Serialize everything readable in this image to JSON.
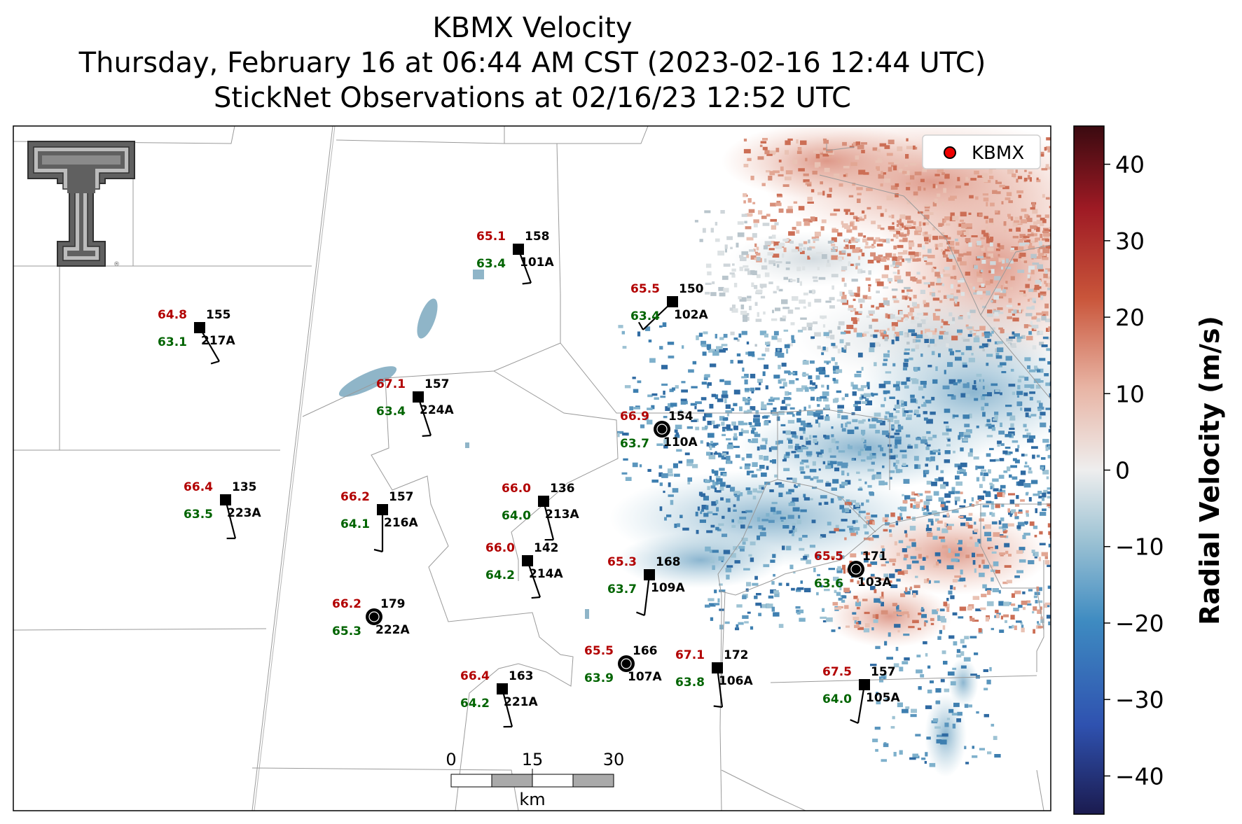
{
  "title": {
    "line1": "KBMX Velocity",
    "line2": "Thursday, February 16 at 06:44 AM CST (2023-02-16 12:44 UTC)",
    "line3": "StickNet Observations at 02/16/23 12:52 UTC"
  },
  "legend": {
    "label": "KBMX",
    "marker_color": "#ee0000"
  },
  "colorbar": {
    "label": "Radial Velocity (m/s)",
    "range": [
      -45,
      45
    ],
    "ticks": [
      "40",
      "30",
      "20",
      "10",
      "0",
      "−10",
      "−20",
      "−30",
      "−40"
    ],
    "colors": [
      "#1b1b4f",
      "#2f52b0",
      "#3e8bc1",
      "#9ec3d4",
      "#eeeeee",
      "#e8b4a4",
      "#c9553a",
      "#9e1a24",
      "#3a0a10"
    ]
  },
  "scale_bar": {
    "labels": [
      "0",
      "15",
      "30"
    ],
    "unit": "km"
  },
  "logo": {
    "name": "texas-tech-double-t-logo",
    "color": "#606060"
  },
  "stations": [
    {
      "id": "101A",
      "temp": "65.1",
      "dew": "63.4",
      "pressure": "158",
      "marker": "square"
    },
    {
      "id": "102A",
      "temp": "65.5",
      "dew": "63.4",
      "pressure": "150",
      "marker": "square"
    },
    {
      "id": "217A",
      "temp": "64.8",
      "dew": "63.1",
      "pressure": "155",
      "marker": "square"
    },
    {
      "id": "224A",
      "temp": "67.1",
      "dew": "63.4",
      "pressure": "157",
      "marker": "square"
    },
    {
      "id": "110A",
      "temp": "66.9",
      "dew": "63.7",
      "pressure": "154",
      "marker": "circle"
    },
    {
      "id": "223A",
      "temp": "66.4",
      "dew": "63.5",
      "pressure": "135",
      "marker": "square"
    },
    {
      "id": "216A",
      "temp": "66.2",
      "dew": "64.1",
      "pressure": "157",
      "marker": "square"
    },
    {
      "id": "213A",
      "temp": "66.0",
      "dew": "64.0",
      "pressure": "136",
      "marker": "square"
    },
    {
      "id": "214A",
      "temp": "66.0",
      "dew": "64.2",
      "pressure": "142",
      "marker": "square"
    },
    {
      "id": "109A",
      "temp": "65.3",
      "dew": "63.7",
      "pressure": "168",
      "marker": "square"
    },
    {
      "id": "103A",
      "temp": "65.5",
      "dew": "63.6",
      "pressure": "171",
      "marker": "circle"
    },
    {
      "id": "222A",
      "temp": "66.2",
      "dew": "65.3",
      "pressure": "179",
      "marker": "circle"
    },
    {
      "id": "107A",
      "temp": "65.5",
      "dew": "63.9",
      "pressure": "166",
      "marker": "circle"
    },
    {
      "id": "106A",
      "temp": "67.1",
      "dew": "63.8",
      "pressure": "172",
      "marker": "square"
    },
    {
      "id": "221A",
      "temp": "66.4",
      "dew": "64.2",
      "pressure": "163",
      "marker": "square"
    },
    {
      "id": "105A",
      "temp": "67.5",
      "dew": "64.0",
      "pressure": "157",
      "marker": "square"
    }
  ]
}
